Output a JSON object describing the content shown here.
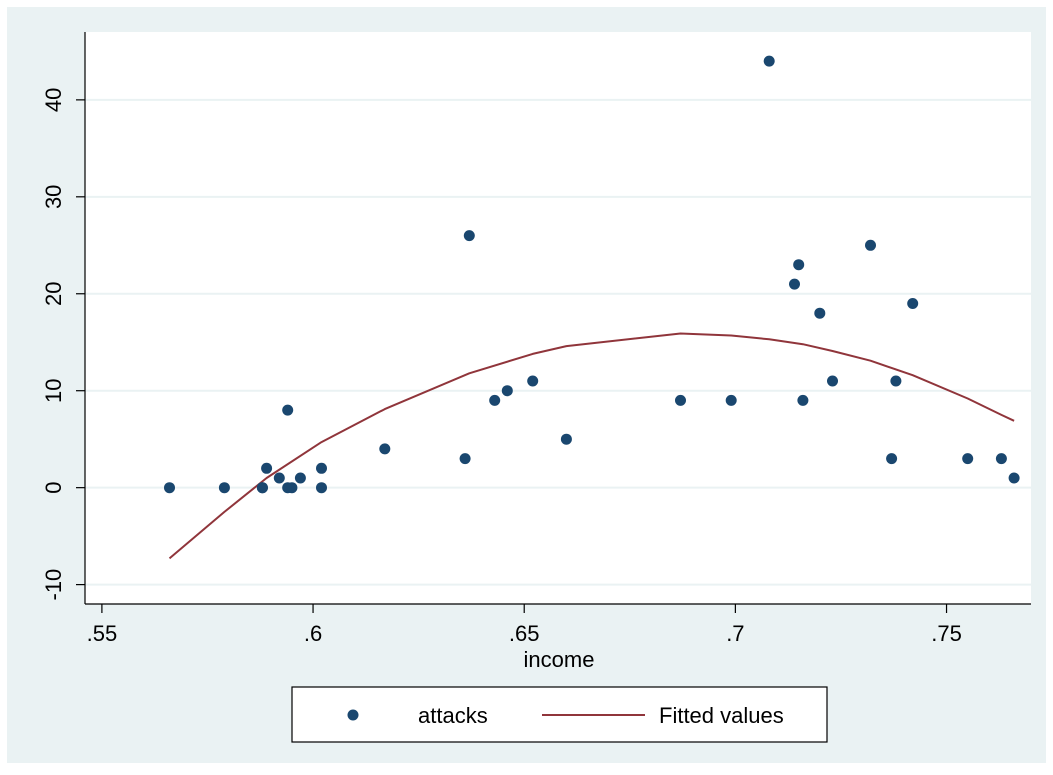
{
  "chart_data": {
    "type": "scatter",
    "xlabel": "income",
    "ylabel": "",
    "xlim": [
      0.546,
      0.77
    ],
    "ylim": [
      -12,
      47
    ],
    "x_ticks": [
      0.55,
      0.6,
      0.65,
      0.7,
      0.75
    ],
    "x_tick_labels": [
      ".55",
      ".6",
      ".65",
      ".7",
      ".75"
    ],
    "y_ticks": [
      -10,
      0,
      10,
      20,
      30,
      40
    ],
    "y_tick_labels": [
      "-10",
      "0",
      "10",
      "20",
      "30",
      "40"
    ],
    "grid": "horizontal",
    "legend_position": "bottom",
    "series": [
      {
        "name": "attacks",
        "type": "scatter",
        "color": "#1a476f",
        "points": [
          [
            0.566,
            0
          ],
          [
            0.579,
            0
          ],
          [
            0.588,
            0
          ],
          [
            0.588,
            0
          ],
          [
            0.589,
            2
          ],
          [
            0.592,
            1
          ],
          [
            0.594,
            8
          ],
          [
            0.594,
            0
          ],
          [
            0.595,
            0
          ],
          [
            0.597,
            1
          ],
          [
            0.602,
            2
          ],
          [
            0.602,
            0
          ],
          [
            0.617,
            4
          ],
          [
            0.636,
            3
          ],
          [
            0.637,
            26
          ],
          [
            0.643,
            9
          ],
          [
            0.646,
            10
          ],
          [
            0.652,
            11
          ],
          [
            0.66,
            5
          ],
          [
            0.687,
            9
          ],
          [
            0.699,
            9
          ],
          [
            0.708,
            44
          ],
          [
            0.714,
            21
          ],
          [
            0.715,
            23
          ],
          [
            0.716,
            9
          ],
          [
            0.72,
            18
          ],
          [
            0.723,
            11
          ],
          [
            0.732,
            25
          ],
          [
            0.737,
            3
          ],
          [
            0.738,
            11
          ],
          [
            0.742,
            19
          ],
          [
            0.755,
            3
          ],
          [
            0.763,
            3
          ],
          [
            0.766,
            1
          ]
        ]
      },
      {
        "name": "Fitted values",
        "type": "line",
        "color": "#90353b",
        "points": [
          [
            0.566,
            -7.3
          ],
          [
            0.579,
            -2.5
          ],
          [
            0.589,
            1.0
          ],
          [
            0.602,
            4.7
          ],
          [
            0.617,
            8.1
          ],
          [
            0.637,
            11.8
          ],
          [
            0.652,
            13.8
          ],
          [
            0.66,
            14.6
          ],
          [
            0.687,
            15.9
          ],
          [
            0.699,
            15.7
          ],
          [
            0.708,
            15.3
          ],
          [
            0.716,
            14.8
          ],
          [
            0.723,
            14.1
          ],
          [
            0.732,
            13.1
          ],
          [
            0.742,
            11.6
          ],
          [
            0.755,
            9.2
          ],
          [
            0.763,
            7.5
          ],
          [
            0.766,
            6.9
          ]
        ]
      }
    ]
  }
}
